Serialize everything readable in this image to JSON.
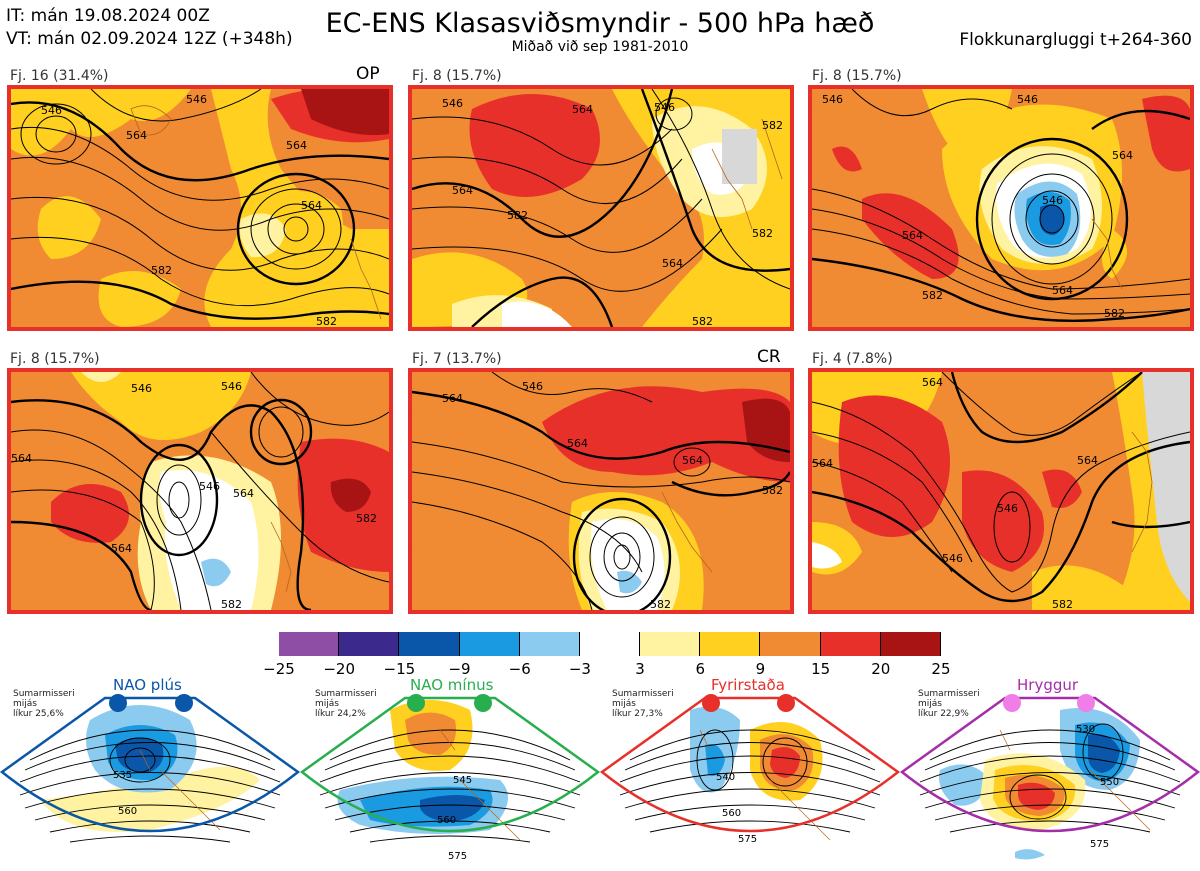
{
  "header": {
    "it_line": "IT: mán 19.08.2024 00Z",
    "vt_line": "VT: mán 02.09.2024 12Z  (+348h)",
    "title": "EC-ENS Klasasviðsmyndir - 500 hPa hæð",
    "subtitle": "Miðað við sep 1981-2010",
    "window": "Flokkunargluggi t+264-360"
  },
  "colors": {
    "panel_border": "#e8302b",
    "nao_plus": "#0a56a8",
    "nao_minus": "#27ae4f",
    "blocking": "#e8302b",
    "ridge": "#a42ea8"
  },
  "panels": [
    {
      "label": "Fj. 16 (31.4%)",
      "tag": "OP"
    },
    {
      "label": "Fj. 8 (15.7%)",
      "tag": ""
    },
    {
      "label": "Fj. 8 (15.7%)",
      "tag": ""
    },
    {
      "label": "Fj. 8 (15.7%)",
      "tag": ""
    },
    {
      "label": "Fj. 7 (13.7%)",
      "tag": "CR"
    },
    {
      "label": "Fj. 4 (7.8%)",
      "tag": ""
    }
  ],
  "contour_labels": {
    "p1": [
      "546",
      "546",
      "564",
      "564",
      "564",
      "582",
      "582"
    ],
    "p2": [
      "546",
      "546",
      "564",
      "564",
      "564",
      "582",
      "582",
      "582",
      "582"
    ],
    "p3": [
      "546",
      "546",
      "564",
      "564",
      "546",
      "582",
      "564",
      "582"
    ],
    "p4": [
      "546",
      "564",
      "546",
      "564",
      "546",
      "564",
      "582",
      "582"
    ],
    "p5": [
      "546",
      "564",
      "564",
      "564",
      "582",
      "582"
    ],
    "p6": [
      "564",
      "564",
      "546",
      "546",
      "564",
      "582"
    ]
  },
  "colorbar": {
    "ticks": [
      "−25",
      "−20",
      "−15",
      "−9",
      "−6",
      "−3",
      "3",
      "6",
      "9",
      "15",
      "20",
      "25"
    ],
    "colors": [
      "#8e4ea6",
      "#3b2a8c",
      "#0a56a8",
      "#1a9ae0",
      "#8ccbf0",
      "#ffffff",
      "#fff2a0",
      "#ffd020",
      "#f08a33",
      "#e8302b",
      "#a81414"
    ]
  },
  "regimes": [
    {
      "name": "NAO plús",
      "season": "Sumarmisseri",
      "mean": "mijás",
      "prob": "líkur 25,6%",
      "contours": [
        "535",
        "560"
      ]
    },
    {
      "name": "NAO mínus",
      "season": "Sumarmisseri",
      "mean": "mijás",
      "prob": "líkur 24,2%",
      "contours": [
        "545",
        "560",
        "575"
      ]
    },
    {
      "name": "Fyrirstaða",
      "season": "Sumarmisseri",
      "mean": "mijás",
      "prob": "líkur 27,3%",
      "contours": [
        "540",
        "560",
        "575"
      ]
    },
    {
      "name": "Hryggur",
      "season": "Sumarmisseri",
      "mean": "mijás",
      "prob": "líkur 22,9%",
      "contours": [
        "530",
        "550",
        "575"
      ]
    }
  ]
}
